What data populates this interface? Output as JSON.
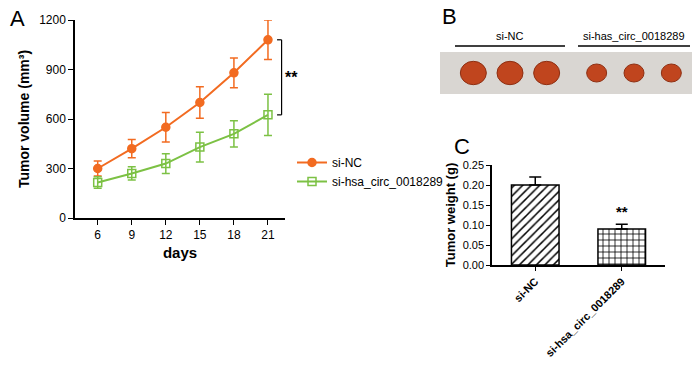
{
  "chart_data": [
    {
      "type": "line",
      "title": "A",
      "x": [
        6,
        9,
        12,
        15,
        18,
        21
      ],
      "xlabel": "days",
      "ylabel": "Tumor volume (mm³)",
      "xlim": [
        4,
        22.5
      ],
      "xticks": [
        6,
        9,
        12,
        15,
        18,
        21
      ],
      "ylim": [
        0,
        1200
      ],
      "yticks": [
        0,
        300,
        600,
        900,
        1200
      ],
      "grid": false,
      "legend": "right",
      "annotations": [
        "**"
      ],
      "series": [
        {
          "name": "si-NC",
          "color": "#f26b21",
          "marker": "circle",
          "values": [
            300,
            420,
            550,
            700,
            880,
            1080
          ],
          "errors": [
            45,
            55,
            90,
            95,
            90,
            120
          ]
        },
        {
          "name": "si-hsa_circ_0018289",
          "color": "#7cc144",
          "marker": "square-open",
          "values": [
            215,
            270,
            330,
            430,
            510,
            625
          ],
          "errors": [
            35,
            40,
            60,
            90,
            80,
            125
          ]
        }
      ]
    },
    {
      "type": "image",
      "title": "B",
      "groups": [
        "si-NC",
        "si-has_circ_0018289"
      ]
    },
    {
      "type": "bar",
      "title": "C",
      "categories": [
        "si-NC",
        "si-hsa_circ_0018289"
      ],
      "values": [
        0.2,
        0.09
      ],
      "errors": [
        0.02,
        0.012
      ],
      "ylabel": "Tumor weight (g)",
      "ylim": [
        0,
        0.25
      ],
      "yticks": [
        {
          "value": 0,
          "label": "0.00"
        },
        {
          "value": 0.05,
          "label": "0.05"
        },
        {
          "value": 0.1,
          "label": "0.10"
        },
        {
          "value": 0.15,
          "label": "0.15"
        },
        {
          "value": 0.2,
          "label": "0.20"
        },
        {
          "value": 0.25,
          "label": "0.25"
        }
      ],
      "grid": false,
      "annotations": [
        "**"
      ]
    }
  ]
}
